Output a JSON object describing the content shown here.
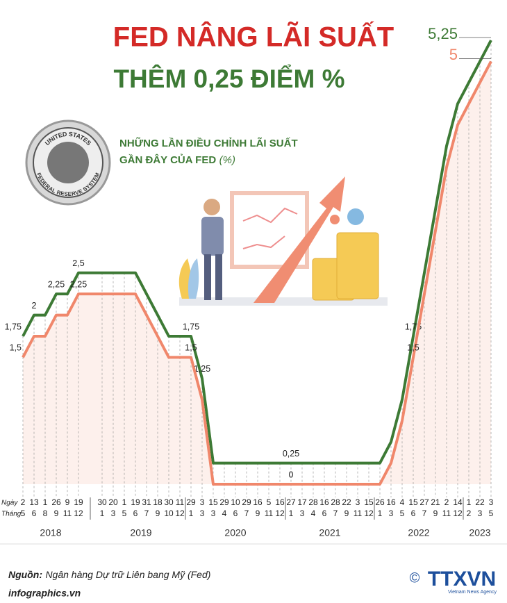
{
  "header": {
    "title": "FED NÂNG LÃI SUẤT",
    "title2": "THÊM 0,25 ĐIỂM %",
    "subtitle_lines": [
      "NHỮNG LẦN ĐIỀU CHỈNH LÃI SUẤT",
      "GẦN ĐÂY CỦA FED"
    ],
    "unit": "(%)"
  },
  "seal": {
    "top": "UNITED STATES",
    "bottom": "FEDERAL RESERVE SYSTEM"
  },
  "chart_data": {
    "type": "line",
    "row_labels": [
      "Ngày",
      "Tháng"
    ],
    "days": [
      "2",
      "13",
      "1",
      "26",
      "9",
      "19",
      "30",
      "20",
      "1",
      "19",
      "31",
      "18",
      "30",
      "11",
      "29",
      "3",
      "15",
      "29",
      "10",
      "29",
      "16",
      "5",
      "16",
      "27",
      "17",
      "28",
      "16",
      "28",
      "22",
      "3",
      "15",
      "26",
      "16",
      "4",
      "15",
      "27",
      "21",
      "2",
      "14",
      "1",
      "22",
      "3"
    ],
    "months": [
      "5",
      "6",
      "8",
      "9",
      "11",
      "12",
      "1",
      "3",
      "5",
      "6",
      "7",
      "9",
      "10",
      "12",
      "1",
      "3",
      "3",
      "4",
      "6",
      "7",
      "9",
      "11",
      "12",
      "1",
      "3",
      "4",
      "6",
      "7",
      "9",
      "11",
      "12",
      "1",
      "3",
      "5",
      "6",
      "7",
      "9",
      "11",
      "12",
      "2",
      "3",
      "5"
    ],
    "years": [
      "2018",
      "2019",
      "2020",
      "2021",
      "2022",
      "2023"
    ],
    "series": [
      {
        "color": "#3d7a35",
        "values": [
          1.75,
          2,
          2,
          2.25,
          2.25,
          2.5,
          2.5,
          2.5,
          2.5,
          2.5,
          2.25,
          2,
          1.75,
          1.75,
          1.75,
          1.25,
          0.25,
          0.25,
          0.25,
          0.25,
          0.25,
          0.25,
          0.25,
          0.25,
          0.25,
          0.25,
          0.25,
          0.25,
          0.25,
          0.25,
          0.25,
          0.25,
          0.5,
          1,
          1.75,
          2.5,
          3.25,
          4,
          4.5,
          4.75,
          5,
          5.25
        ],
        "value_labels": [
          "1,75",
          "2",
          null,
          "2,25",
          null,
          "2,5",
          null,
          null,
          null,
          null,
          null,
          null,
          null,
          null,
          "1,75",
          "1,25",
          null,
          null,
          null,
          null,
          null,
          null,
          null,
          "0,25",
          null,
          null,
          null,
          null,
          null,
          null,
          null,
          null,
          null,
          null,
          "1,75",
          null,
          null,
          null,
          null,
          null,
          null,
          "5,25"
        ]
      },
      {
        "color": "#f0876b",
        "values": [
          1.5,
          1.75,
          1.75,
          2,
          2,
          2.25,
          2.25,
          2.25,
          2.25,
          2.25,
          2,
          1.75,
          1.5,
          1.5,
          1.5,
          1,
          0,
          0,
          0,
          0,
          0,
          0,
          0,
          0,
          0,
          0,
          0,
          0,
          0,
          0,
          0,
          0,
          0.25,
          0.75,
          1.5,
          2.25,
          3,
          3.75,
          4.25,
          4.5,
          4.75,
          5
        ],
        "value_labels": [
          "1,5",
          null,
          null,
          null,
          null,
          "2,25",
          null,
          null,
          null,
          null,
          null,
          null,
          null,
          null,
          "1,5",
          null,
          null,
          null,
          null,
          null,
          null,
          null,
          null,
          "0",
          null,
          null,
          null,
          null,
          null,
          null,
          null,
          null,
          null,
          null,
          "1,5",
          null,
          null,
          null,
          null,
          null,
          null,
          "5"
        ]
      }
    ]
  },
  "footer": {
    "source_label": "Nguồn:",
    "source": "Ngân hàng Dự trữ Liên bang Mỹ (Fed)",
    "site": "infographics.vn",
    "copyright": "©",
    "logo": "TTXVN",
    "logo_sub": "Vietnam News Agency"
  }
}
